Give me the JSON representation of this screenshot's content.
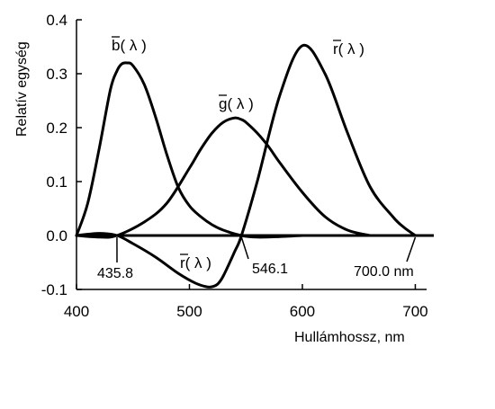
{
  "chart_data": {
    "type": "line",
    "xlabel": "Hullámhossz, nm",
    "ylabel": "Relatív egység",
    "xlim": [
      400,
      710
    ],
    "ylim": [
      -0.1,
      0.4
    ],
    "x_ticks": [
      400,
      500,
      600,
      700
    ],
    "x_tick_labels": [
      "400",
      "500",
      "600",
      "700"
    ],
    "y_ticks": [
      -0.1,
      0.0,
      0.1,
      0.2,
      0.3,
      0.4
    ],
    "y_tick_labels": [
      "-0.1",
      "0.0",
      "0.1",
      "0.2",
      "0.3",
      "0.4"
    ],
    "annotations": [
      "435.8",
      "546.1",
      "700.0 nm"
    ],
    "series": [
      {
        "name": "b(λ)",
        "x": [
          400,
          410,
          420,
          430,
          435.8,
          440,
          445,
          450,
          460,
          470,
          480,
          490,
          500,
          510,
          520,
          530,
          546.1,
          560,
          580,
          600
        ],
        "values": [
          0.0,
          0.06,
          0.16,
          0.27,
          0.305,
          0.318,
          0.32,
          0.315,
          0.28,
          0.22,
          0.15,
          0.09,
          0.055,
          0.035,
          0.02,
          0.01,
          0.0,
          -0.003,
          -0.002,
          0.0
        ]
      },
      {
        "name": "g(λ)",
        "x": [
          400,
          420,
          435.8,
          460,
          480,
          500,
          510,
          520,
          530,
          540,
          546.1,
          550,
          560,
          570,
          580,
          600,
          620,
          640,
          660
        ],
        "values": [
          0.0,
          -0.003,
          0.0,
          0.025,
          0.06,
          0.125,
          0.16,
          0.19,
          0.21,
          0.218,
          0.215,
          0.21,
          0.19,
          0.165,
          0.135,
          0.08,
          0.035,
          0.01,
          0.0
        ]
      },
      {
        "name": "r(λ)",
        "x": [
          400,
          420,
          435.8,
          450,
          470,
          490,
          505,
          515,
          520,
          525,
          530,
          540,
          546.1,
          560,
          580,
          600,
          620,
          640,
          660,
          680,
          690,
          700
        ],
        "values": [
          0.0,
          0.004,
          0.0,
          -0.015,
          -0.04,
          -0.07,
          -0.088,
          -0.095,
          -0.095,
          -0.09,
          -0.075,
          -0.03,
          0.0,
          0.1,
          0.26,
          0.352,
          0.3,
          0.19,
          0.09,
          0.035,
          0.015,
          0.0
        ]
      }
    ],
    "curve_labels": [
      {
        "base": "b",
        "lambda": "λ"
      },
      {
        "base": "g",
        "lambda": "λ"
      },
      {
        "base": "r",
        "lambda": "λ"
      },
      {
        "base": "r",
        "lambda": "λ"
      }
    ],
    "grid": false,
    "legend": "none"
  }
}
